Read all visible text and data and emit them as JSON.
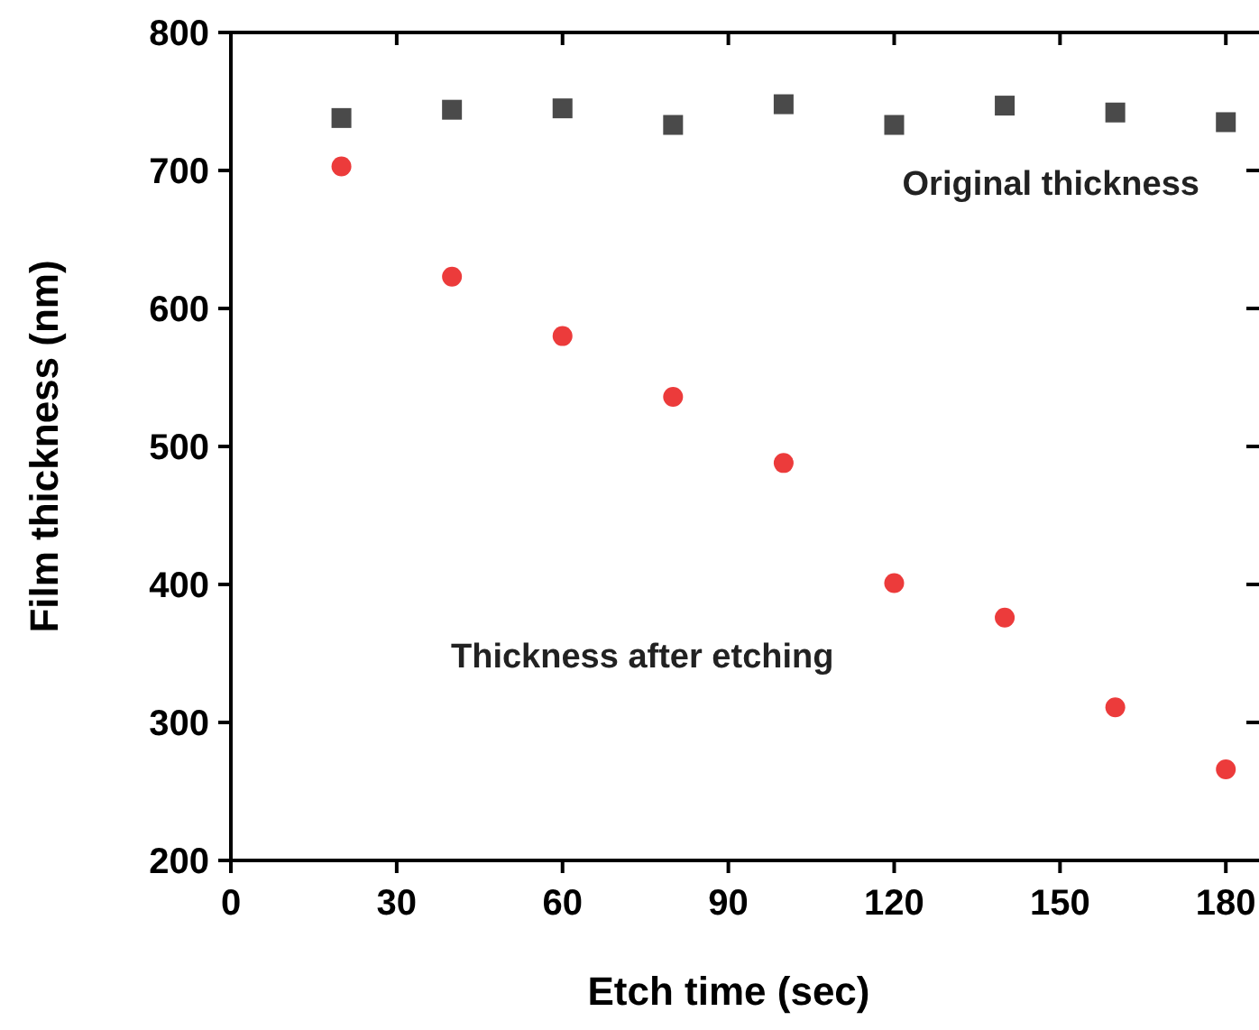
{
  "chart_data": {
    "type": "scatter",
    "xlabel": "Etch time (sec)",
    "ylabel": "Film thickness (nm)",
    "xlim": [
      0,
      186
    ],
    "xticks": [
      0,
      30,
      60,
      90,
      120,
      150,
      180
    ],
    "ylim": [
      200,
      800
    ],
    "yticks": [
      200,
      300,
      400,
      500,
      600,
      700,
      800
    ],
    "series": [
      {
        "name": "Original thickness",
        "color": "#4a4a4a",
        "marker": "square",
        "x": [
          20,
          40,
          60,
          80,
          100,
          120,
          140,
          160,
          180
        ],
        "values": [
          738,
          744,
          745,
          733,
          748,
          733,
          747,
          742,
          735
        ]
      },
      {
        "name": "Thickness after etching",
        "color": "#ec3b3b",
        "marker": "circle",
        "x": [
          20,
          40,
          60,
          80,
          100,
          120,
          140,
          160,
          180
        ],
        "values": [
          703,
          623,
          580,
          536,
          488,
          401,
          376,
          311,
          266
        ]
      }
    ]
  }
}
